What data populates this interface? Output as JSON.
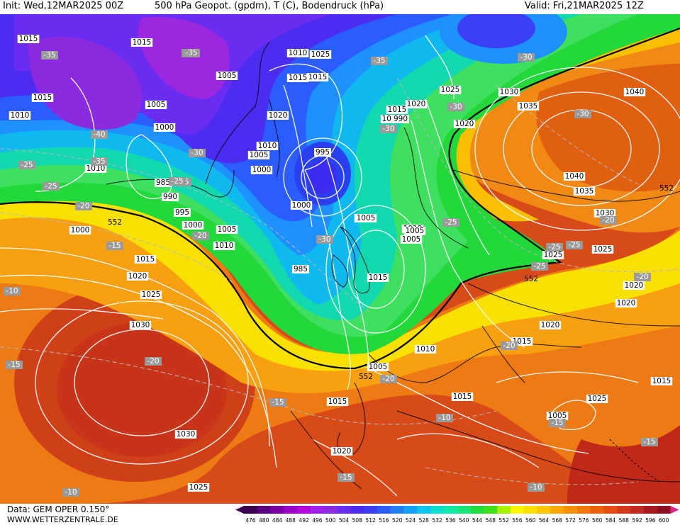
{
  "header": {
    "init": "Init: Wed,12MAR2025 00Z",
    "title": "500 hPa Geopot. (gpdm), T (C), Bodendruck (hPa)",
    "valid": "Valid: Fri,21MAR2025 12Z"
  },
  "footer": {
    "data": "Data: GEM OPER 0.150°",
    "site": "WWW.WETTERZENTRALE.DE"
  },
  "legend": {
    "ticks": [
      "476",
      "480",
      "484",
      "488",
      "492",
      "496",
      "500",
      "504",
      "508",
      "512",
      "516",
      "520",
      "524",
      "528",
      "532",
      "536",
      "540",
      "544",
      "548",
      "552",
      "556",
      "560",
      "564",
      "568",
      "572",
      "576",
      "580",
      "584",
      "588",
      "592",
      "596",
      "600"
    ],
    "colors": [
      "#3b0050",
      "#5a0080",
      "#7a00a6",
      "#9b00c8",
      "#b400dc",
      "#a020f0",
      "#8a2be2",
      "#6a2cf0",
      "#4b2cf0",
      "#3a3ef5",
      "#2a5cff",
      "#1f7fff",
      "#12a3ff",
      "#10c4f0",
      "#10ddd0",
      "#12e8a8",
      "#18e678",
      "#20e040",
      "#40e018",
      "#a8f000",
      "#f8f800",
      "#ffe000",
      "#ffc400",
      "#ffa800",
      "#ff9000",
      "#f87800",
      "#f06000",
      "#e84a10",
      "#d83818",
      "#c42820",
      "#a81820",
      "#8c1020"
    ]
  },
  "pressure_labels": [
    "1020",
    "1015",
    "1010",
    "1015",
    "1010",
    "1010",
    "1005",
    "1005",
    "1000",
    "985",
    "990",
    "995",
    "1000",
    "1005",
    "1010",
    "1015",
    "1020",
    "1025",
    "1030",
    "1030",
    "1025",
    "1015",
    "1020",
    "1025",
    "1015",
    "1020",
    "1010",
    "1005",
    "990",
    "995",
    "1000",
    "1005",
    "1010",
    "1005",
    "1005",
    "1010",
    "1015",
    "1020",
    "1025",
    "1030",
    "1035",
    "1040",
    "1040",
    "1035",
    "1030",
    "1025",
    "1025",
    "1020",
    "1020",
    "1020",
    "1015",
    "1015",
    "1010",
    "1005",
    "1005",
    "1015",
    "1015",
    "985",
    "1000",
    "1000",
    "1005",
    "990",
    "1010",
    "1015",
    "1020",
    "1025",
    "1010",
    "1015"
  ],
  "temp_labels": [
    "-35",
    "-35",
    "-35",
    "-30",
    "-40",
    "-35",
    "-30",
    "-25",
    "-25",
    "-25",
    "-20",
    "-15",
    "-10",
    "-15",
    "-20",
    "-15",
    "-10",
    "-35",
    "-30",
    "-30",
    "-30",
    "-25",
    "-25",
    "-20",
    "-30",
    "-25",
    "-25",
    "-20",
    "-20",
    "-15",
    "-10",
    "-10",
    "-15",
    "-20",
    "-20",
    "-25",
    "-15",
    "-10"
  ],
  "geopot_labels": [
    "552",
    "552",
    "552",
    "552"
  ],
  "colors": {
    "deep_purple": "#8a2be2",
    "blue": "#2a5cff",
    "green": "#20e040",
    "yellow": "#f8f800",
    "orange": "#ff9000",
    "red": "#d83818",
    "contour": "#ffffff"
  }
}
